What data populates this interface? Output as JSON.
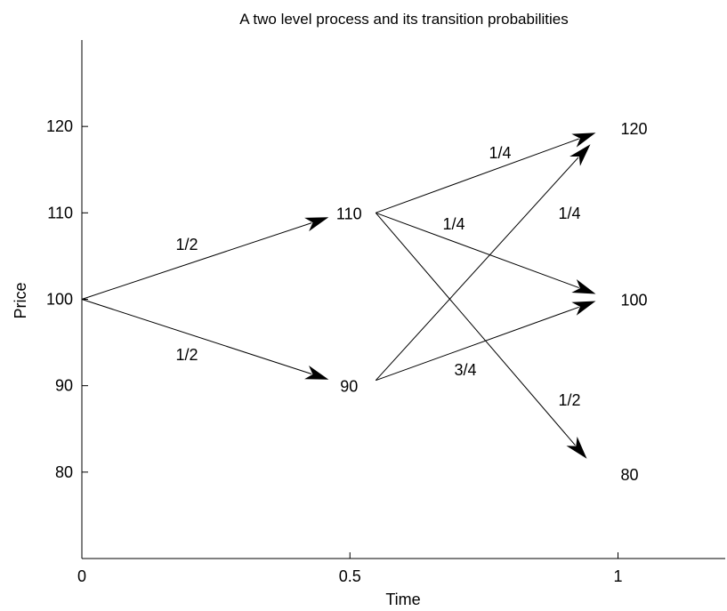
{
  "chart_data": {
    "type": "diagram",
    "title": "A two level process and its transition probabilities",
    "xlabel": "Time",
    "ylabel": "Price",
    "xlim": [
      0,
      1.2
    ],
    "ylim": [
      70,
      130
    ],
    "x_ticks": [
      {
        "value": 0,
        "label": "0"
      },
      {
        "value": 0.5,
        "label": "0.5"
      },
      {
        "value": 1,
        "label": "1"
      }
    ],
    "y_ticks": [
      {
        "value": 80,
        "label": "80"
      },
      {
        "value": 90,
        "label": "90"
      },
      {
        "value": 100,
        "label": "100"
      },
      {
        "value": 110,
        "label": "110"
      },
      {
        "value": 120,
        "label": "120"
      }
    ],
    "nodes": [
      {
        "id": "n1_110",
        "time": 0.5,
        "price": 110,
        "label": "110"
      },
      {
        "id": "n1_90",
        "time": 0.5,
        "price": 90,
        "label": "90"
      },
      {
        "id": "n2_120",
        "time": 1,
        "price": 120,
        "label": "120"
      },
      {
        "id": "n2_100",
        "time": 1,
        "price": 100,
        "label": "100"
      },
      {
        "id": "n2_80",
        "time": 1,
        "price": 80,
        "label": "80"
      }
    ],
    "transitions": [
      {
        "from": [
          0,
          100
        ],
        "to": [
          0.5,
          110
        ],
        "probability": "1/2"
      },
      {
        "from": [
          0,
          100
        ],
        "to": [
          0.5,
          90
        ],
        "probability": "1/2"
      },
      {
        "from": [
          0.5,
          110
        ],
        "to": [
          1,
          120
        ],
        "probability": "1/4"
      },
      {
        "from": [
          0.5,
          110
        ],
        "to": [
          1,
          100
        ],
        "probability": "1/4"
      },
      {
        "from": [
          0.5,
          110
        ],
        "to": [
          1,
          80
        ],
        "probability": "1/2"
      },
      {
        "from": [
          0.5,
          90
        ],
        "to": [
          1,
          120
        ],
        "probability": "1/4"
      },
      {
        "from": [
          0.5,
          90
        ],
        "to": [
          1,
          100
        ],
        "probability": "3/4"
      }
    ]
  }
}
